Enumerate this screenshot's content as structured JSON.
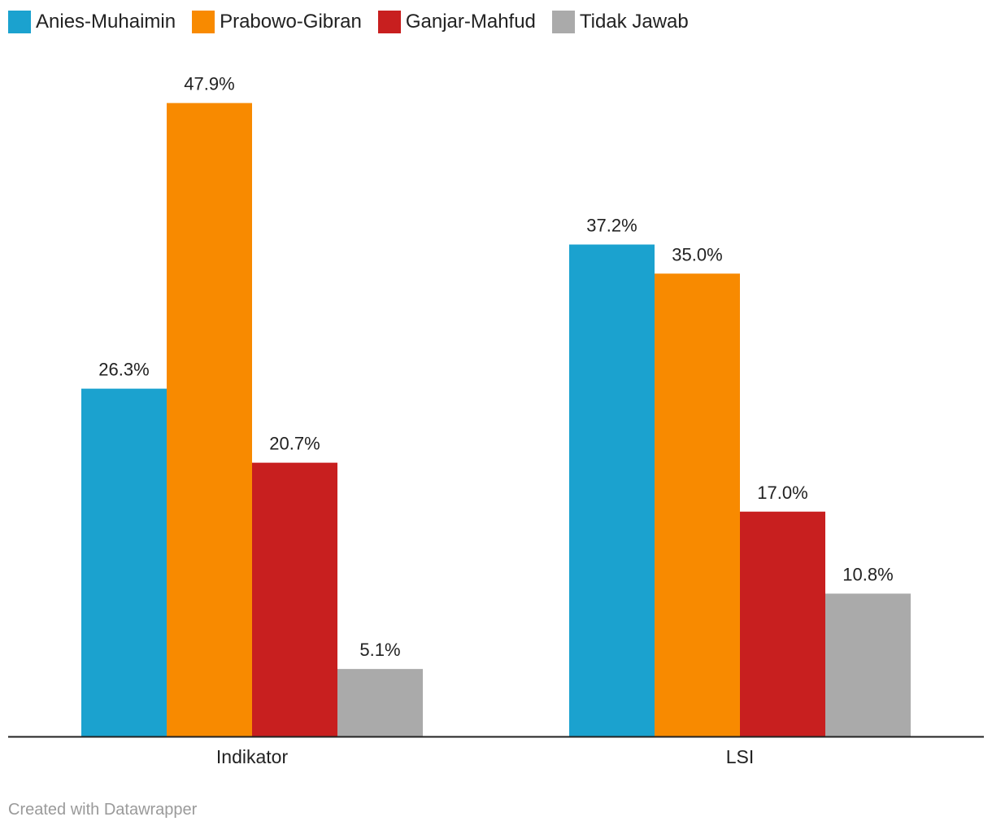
{
  "chart_data": {
    "type": "bar",
    "categories": [
      "Indikator",
      "LSI"
    ],
    "series": [
      {
        "name": "Anies-Muhaimin",
        "values": [
          26.3,
          37.2
        ],
        "labels": [
          "26.3%",
          "37.2%"
        ],
        "color": "#1ba2cf"
      },
      {
        "name": "Prabowo-Gibran",
        "values": [
          47.9,
          35.0
        ],
        "labels": [
          "47.9%",
          "35.0%"
        ],
        "color": "#f88a00"
      },
      {
        "name": "Ganjar-Mahfud",
        "values": [
          20.7,
          17.0
        ],
        "labels": [
          "20.7%",
          "17.0%"
        ],
        "color": "#c81f1f"
      },
      {
        "name": "Tidak Jawab",
        "values": [
          5.1,
          10.8
        ],
        "labels": [
          "5.1%",
          "10.8%"
        ],
        "color": "#aaaaaa"
      }
    ],
    "ylim": [
      0,
      50
    ],
    "grid": false,
    "legend": "top-left",
    "value_labels": true
  },
  "footer": {
    "credit": "Created with Datawrapper"
  }
}
